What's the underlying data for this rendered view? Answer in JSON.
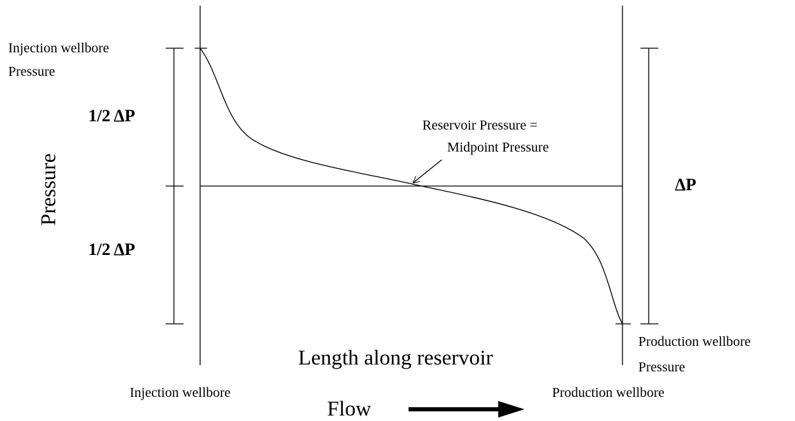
{
  "injection_pressure_label": [
    "Injection wellbore",
    "Pressure"
  ],
  "half_delta_top": "1/2 ΔP",
  "half_delta_bottom": "1/2 ΔP",
  "y_axis_label": "Pressure",
  "midpoint_label": [
    "Reservoir Pressure =",
    "Midpoint Pressure"
  ],
  "delta_p": "ΔP",
  "production_pressure_label": [
    "Production wellbore",
    "Pressure"
  ],
  "x_axis_label": "Length along reservoir",
  "injection_wellbore": "Injection wellbore",
  "production_wellbore": "Production wellbore",
  "flow_label": "Flow"
}
